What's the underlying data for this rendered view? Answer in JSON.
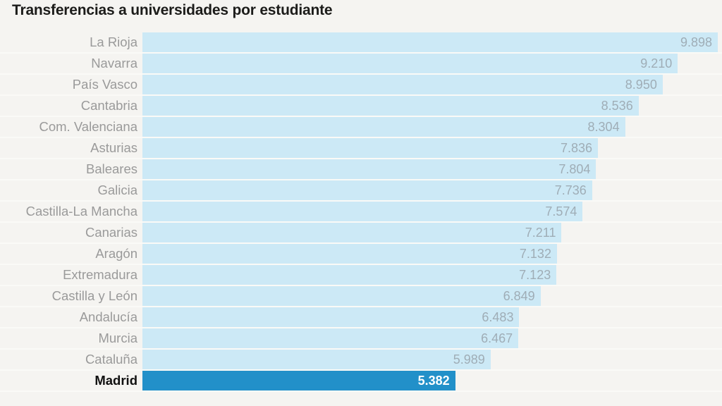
{
  "page": {
    "background": "#f5f4f1"
  },
  "header": {
    "title": "Transferencias a universidades por estudiante"
  },
  "chart_data": {
    "type": "bar",
    "orientation": "horizontal",
    "title": "Transferencias a universidades por estudiante",
    "xlabel": "",
    "ylabel": "",
    "xlim": [
      0,
      9898
    ],
    "grid": false,
    "legend": false,
    "value_format": "spanish-thousands-dot",
    "categories": [
      "La Rioja",
      "Navarra",
      "País Vasco",
      "Cantabria",
      "Com. Valenciana",
      "Asturias",
      "Baleares",
      "Galicia",
      "Castilla-La Mancha",
      "Canarias",
      "Aragón",
      "Extremadura",
      "Castilla y León",
      "Andalucía",
      "Murcia",
      "Cataluña",
      "Madrid"
    ],
    "values": [
      9898,
      9210,
      8950,
      8536,
      8304,
      7836,
      7804,
      7736,
      7574,
      7211,
      7132,
      7123,
      6849,
      6483,
      6467,
      5989,
      5382
    ],
    "value_labels": [
      "9.898",
      "9.210",
      "8.950",
      "8.536",
      "8.304",
      "7.836",
      "7.804",
      "7.736",
      "7.574",
      "7.211",
      "7.132",
      "7.123",
      "6.849",
      "6.483",
      "6.467",
      "5.989",
      "5.382"
    ],
    "highlight_category": "Madrid",
    "colors": {
      "bar": "#cce9f6",
      "highlight_bar": "#2290c9",
      "category_label": "#9a9a9a",
      "highlight_category_label": "#111111",
      "value_label": "#9fadb6",
      "highlight_value_label": "#ffffff",
      "title": "#1c1c1a",
      "background": "#f5f4f1"
    }
  }
}
